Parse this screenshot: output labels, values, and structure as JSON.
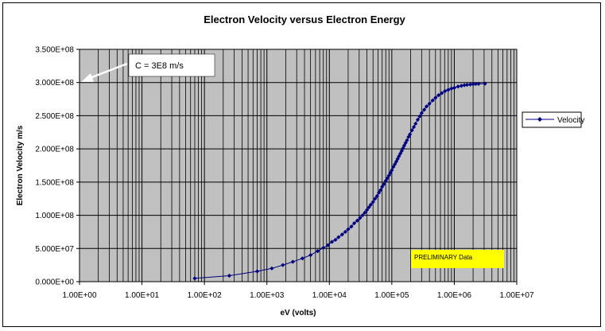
{
  "chart_data": {
    "type": "scatter",
    "title": "Electron Velocity versus Electron Energy",
    "xlabel": "eV (volts)",
    "ylabel": "Electron Velocity m/s",
    "x_scale": "log",
    "xlim": [
      1,
      10000000
    ],
    "ylim": [
      0,
      350000000
    ],
    "x_tick_labels": [
      "1.00E+00",
      "1.00E+01",
      "1.00E+02",
      "1.00E+03",
      "1.00E+04",
      "1.00E+05",
      "1.00E+06",
      "1.00E+07"
    ],
    "y_tick_labels": [
      "0.000E+00",
      "5.000E+07",
      "1.000E+08",
      "1.500E+08",
      "2.000E+08",
      "2.500E+08",
      "3.000E+08",
      "3.500E+08"
    ],
    "grid": true,
    "plot_background": "#c0c0c0",
    "series": [
      {
        "name": "Velocity",
        "color": "#000080",
        "marker": "diamond",
        "x": [
          70,
          250,
          700,
          1200,
          1800,
          2600,
          3700,
          5000,
          6500,
          8000,
          9500,
          11000,
          12500,
          14000,
          16000,
          18000,
          20000,
          22500,
          25000,
          28000,
          31000,
          34000,
          37000,
          40000,
          43000,
          46000,
          50000,
          54000,
          58000,
          62000,
          66000,
          70000,
          75000,
          80000,
          85000,
          90000,
          95000,
          100000,
          106000,
          112000,
          118000,
          124000,
          130000,
          137000,
          144000,
          151000,
          158000,
          166000,
          175000,
          185000,
          195000,
          210000,
          225000,
          240000,
          260000,
          280000,
          300000,
          330000,
          360000,
          400000,
          450000,
          500000,
          560000,
          630000,
          710000,
          800000,
          900000,
          1000000,
          1150000,
          1300000,
          1450000,
          1600000,
          1800000,
          2000000,
          2200000,
          2450000,
          3100000
        ],
        "y": [
          5000000,
          9000000,
          15600000,
          20000000,
          25000000,
          30000000,
          35000000,
          40000000,
          46000000,
          51000000,
          55000000,
          60000000,
          63000000,
          67000000,
          71000000,
          75000000,
          79000000,
          83000000,
          88000000,
          92000000,
          96000000,
          100000000,
          104000000,
          108000000,
          112000000,
          116000000,
          120000000,
          125000000,
          129000000,
          134000000,
          138000000,
          143000000,
          147000000,
          152000000,
          156000000,
          160000000,
          164000000,
          168000000,
          173000000,
          177000000,
          181000000,
          185000000,
          189000000,
          193000000,
          197000000,
          201000000,
          205000000,
          209000000,
          213000000,
          218000000,
          222000000,
          228000000,
          233000000,
          238000000,
          244000000,
          249000000,
          254000000,
          259000000,
          264000000,
          268000000,
          273000000,
          277000000,
          281000000,
          284000000,
          287000000,
          289000000,
          291000000,
          292000000,
          294000000,
          295000000,
          296000000,
          296500000,
          297000000,
          297500000,
          297800000,
          298000000,
          298300000
        ]
      }
    ],
    "legend": {
      "position": "right",
      "label": "Velocity"
    },
    "annotations": [
      {
        "label": "C = 3E8 m/s",
        "arrow_to": [
          1,
          300000000
        ]
      },
      {
        "label": "PRELIMINARY Data",
        "background": "#ffff00"
      }
    ]
  }
}
